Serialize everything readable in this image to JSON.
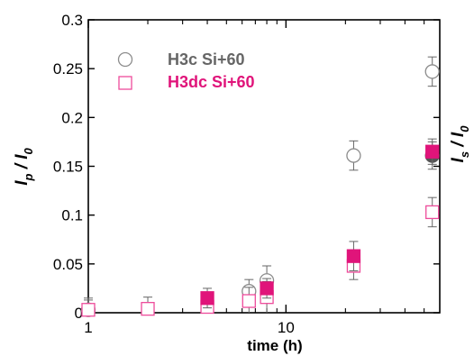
{
  "chart_data": {
    "type": "scatter",
    "x_scale": "log",
    "xlabel": "time (h)",
    "ylabel": "I_p / I_0",
    "ylabel_parts": {
      "main1": "I",
      "sub1": "p",
      "slash": " / ",
      "main2": "I",
      "sub2": "0"
    },
    "ylabel_right_parts": {
      "main1": "I",
      "sub1": "s",
      "slash": " / ",
      "main2": "I",
      "sub2": "0"
    },
    "xlim": [
      1,
      60
    ],
    "ylim": [
      0,
      0.3
    ],
    "x_ticks": [
      {
        "value": 1,
        "label": "1"
      },
      {
        "value": 10,
        "label": "10"
      }
    ],
    "y_ticks": [
      {
        "value": 0,
        "label": "0"
      },
      {
        "value": 0.05,
        "label": "0.05"
      },
      {
        "value": 0.1,
        "label": "0.1"
      },
      {
        "value": 0.15,
        "label": "0.15"
      },
      {
        "value": 0.2,
        "label": "0.2"
      },
      {
        "value": 0.25,
        "label": "0.25"
      },
      {
        "value": 0.3,
        "label": "0.3"
      }
    ],
    "legend_position": "top-left",
    "series": [
      {
        "name": "H3c Si+60",
        "marker": "circle",
        "filled": false,
        "color": "#8c8c8c",
        "legend_text_color": "#666666",
        "points": [
          {
            "x": 1,
            "y": 0.003,
            "err": 0.012
          },
          {
            "x": 6.5,
            "y": 0.022,
            "err": 0.012
          },
          {
            "x": 8,
            "y": 0.033,
            "err": 0.015
          },
          {
            "x": 22,
            "y": 0.161,
            "err": 0.015
          },
          {
            "x": 55,
            "y": 0.247,
            "err": 0.015
          }
        ]
      },
      {
        "name": "H3dc Si+60",
        "marker": "square",
        "filled": false,
        "color": "#ee4b9b",
        "legend_text_color": "#e0147a",
        "points": [
          {
            "x": 1,
            "y": 0.003,
            "err": 0.01
          },
          {
            "x": 2,
            "y": 0.004,
            "err": 0.012
          },
          {
            "x": 4,
            "y": 0.006,
            "err": 0.012
          },
          {
            "x": 6.5,
            "y": 0.012,
            "err": 0.014
          },
          {
            "x": 8,
            "y": 0.016,
            "err": 0.016
          },
          {
            "x": 22,
            "y": 0.048,
            "err": 0.014
          },
          {
            "x": 55,
            "y": 0.103,
            "err": 0.015
          }
        ]
      },
      {
        "name": "",
        "marker": "circle",
        "filled": true,
        "color": "#555555",
        "points": [
          {
            "x": 55,
            "y": 0.161,
            "err": 0.014
          }
        ]
      },
      {
        "name": "",
        "marker": "square",
        "filled": true,
        "color": "#e0147a",
        "points": [
          {
            "x": 4,
            "y": 0.015,
            "err": 0.01
          },
          {
            "x": 8,
            "y": 0.025,
            "err": 0.01
          },
          {
            "x": 22,
            "y": 0.058,
            "err": 0.015
          },
          {
            "x": 55,
            "y": 0.165,
            "err": 0.013
          }
        ]
      }
    ]
  }
}
